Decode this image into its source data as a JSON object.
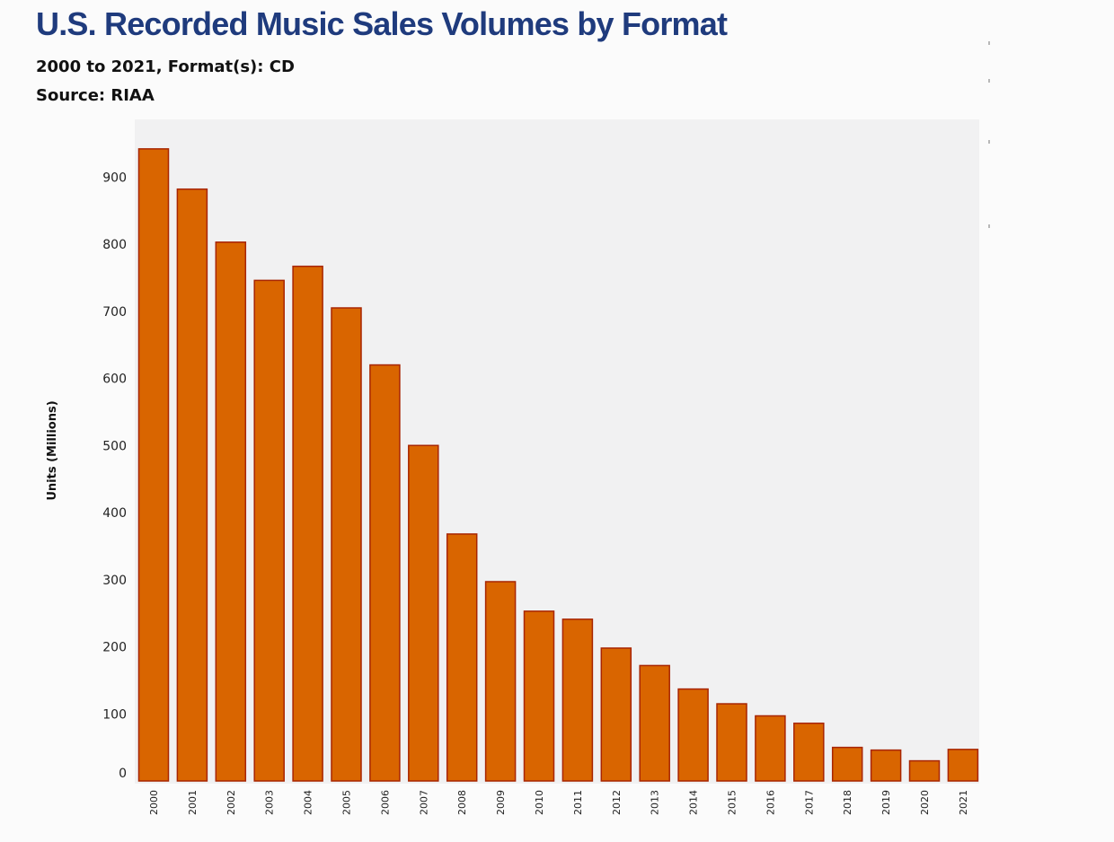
{
  "header": {
    "title": "U.S. Recorded Music Sales Volumes by Format",
    "subtitle_line1": "2000 to 2021, Format(s): CD",
    "subtitle_line2": "Source: RIAA"
  },
  "colors": {
    "bar_fill": "#d96500",
    "bar_stroke": "#a82500",
    "plot_background": "#f1f1f2",
    "title": "#1f3b7d"
  },
  "chart_data": {
    "type": "bar",
    "title": "U.S. Recorded Music Sales Volumes by Format",
    "xlabel": "",
    "ylabel": "Units (Millions)",
    "ylim": [
      0,
      950
    ],
    "yticks": [
      0,
      100,
      200,
      300,
      400,
      500,
      600,
      700,
      800,
      900
    ],
    "grid": false,
    "legend": "none",
    "categories": [
      "2000",
      "2001",
      "2002",
      "2003",
      "2004",
      "2005",
      "2006",
      "2007",
      "2008",
      "2009",
      "2010",
      "2011",
      "2012",
      "2013",
      "2014",
      "2015",
      "2016",
      "2017",
      "2018",
      "2019",
      "2020",
      "2021"
    ],
    "values": [
      942,
      882,
      803,
      746,
      767,
      705,
      620,
      500,
      368,
      297,
      253,
      241,
      198,
      172,
      137,
      115,
      97,
      86,
      50,
      46,
      30,
      47
    ]
  }
}
